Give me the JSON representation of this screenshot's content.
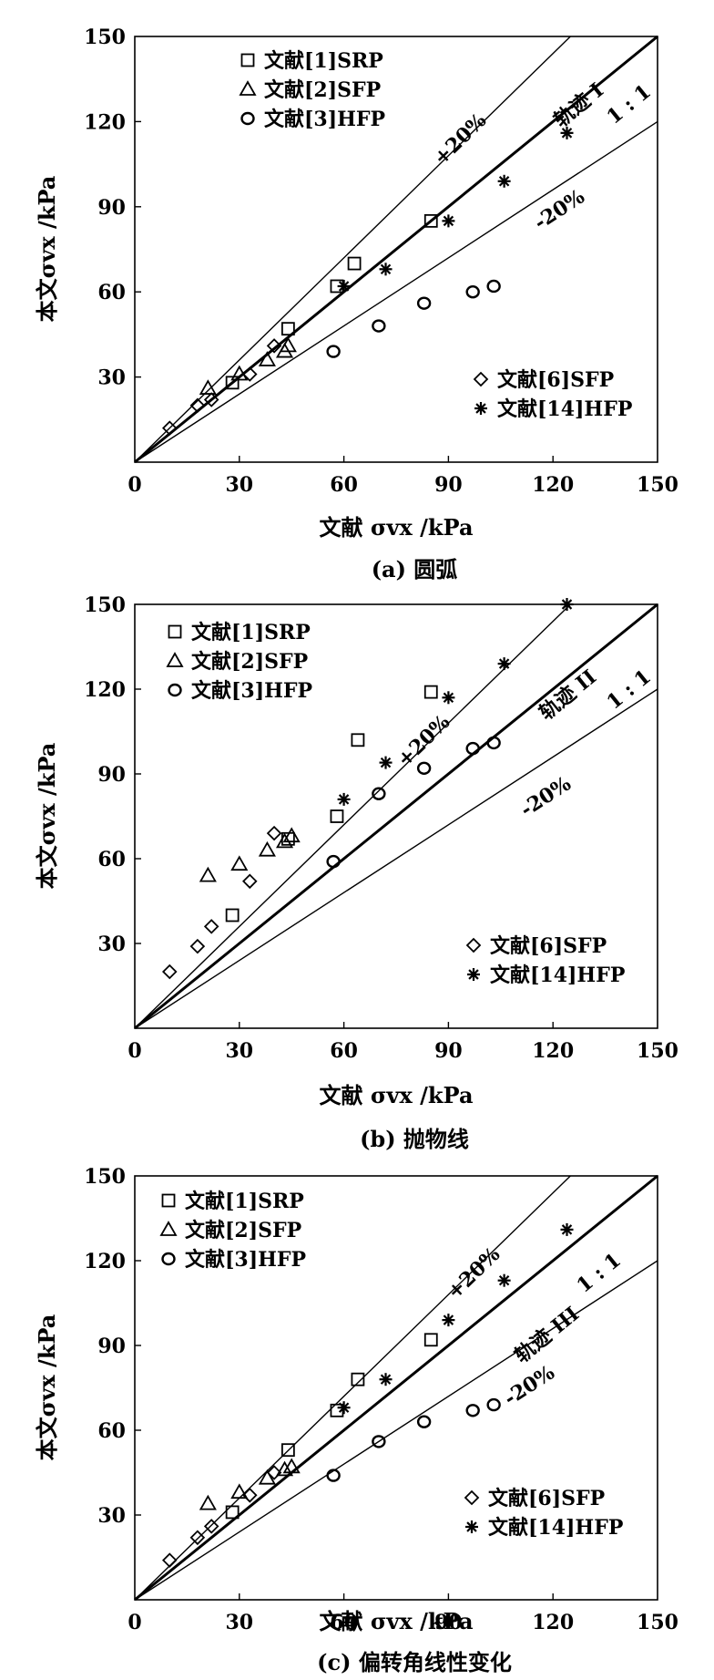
{
  "chart_data": [
    {
      "type": "scatter",
      "caption": "(a) 圆弧",
      "xlabel": "文献 σvx /kPa",
      "ylabel": "本文σvx /kPa",
      "xlim": [
        0,
        150
      ],
      "ylim": [
        0,
        150
      ],
      "xticks": [
        "0",
        "30",
        "60",
        "90",
        "120",
        "150"
      ],
      "yticks": [
        "30",
        "60",
        "90",
        "120",
        "150"
      ],
      "lines": [
        {
          "label": "+20%",
          "slope": 1.2
        },
        {
          "label": "1 : 1",
          "slope": 1.0
        },
        {
          "label": "-20%",
          "slope": 0.8
        }
      ],
      "curve_label": "轨迹 I",
      "series": [
        {
          "name": "文献[1]SRP",
          "marker": "square",
          "points": [
            [
              28,
              28
            ],
            [
              44,
              47
            ],
            [
              58,
              62
            ],
            [
              63,
              70
            ],
            [
              85,
              85
            ]
          ]
        },
        {
          "name": "文献[2]SFP",
          "marker": "triangle",
          "points": [
            [
              21,
              26
            ],
            [
              30,
              31
            ],
            [
              38,
              36
            ],
            [
              43,
              39
            ],
            [
              44,
              41
            ]
          ]
        },
        {
          "name": "文献[3]HFP",
          "marker": "circle",
          "points": [
            [
              57,
              39
            ],
            [
              70,
              48
            ],
            [
              83,
              56
            ],
            [
              97,
              60
            ],
            [
              103,
              62
            ]
          ]
        },
        {
          "name": "文献[6]SFP",
          "marker": "diamond",
          "points": [
            [
              10,
              12
            ],
            [
              18,
              20
            ],
            [
              22,
              22
            ],
            [
              33,
              31
            ],
            [
              40,
              41
            ]
          ]
        },
        {
          "name": "文献[14]HFP",
          "marker": "star",
          "points": [
            [
              60,
              62
            ],
            [
              72,
              68
            ],
            [
              90,
              85
            ],
            [
              106,
              99
            ],
            [
              124,
              116
            ]
          ]
        }
      ]
    },
    {
      "type": "scatter",
      "caption": "(b) 抛物线",
      "xlabel": "文献 σvx /kPa",
      "ylabel": "本文σvx /kPa",
      "xlim": [
        0,
        150
      ],
      "ylim": [
        0,
        150
      ],
      "xticks": [
        "0",
        "30",
        "60",
        "90",
        "120",
        "150"
      ],
      "yticks": [
        "30",
        "60",
        "90",
        "120",
        "150"
      ],
      "lines": [
        {
          "label": "+20%",
          "slope": 1.2
        },
        {
          "label": "1 : 1",
          "slope": 1.0
        },
        {
          "label": "-20%",
          "slope": 0.8
        }
      ],
      "curve_label": "轨迹 II",
      "series": [
        {
          "name": "文献[1]SRP",
          "marker": "square",
          "points": [
            [
              28,
              40
            ],
            [
              44,
              67
            ],
            [
              58,
              75
            ],
            [
              64,
              102
            ],
            [
              85,
              119
            ]
          ]
        },
        {
          "name": "文献[2]SFP",
          "marker": "triangle",
          "points": [
            [
              21,
              54
            ],
            [
              30,
              58
            ],
            [
              38,
              63
            ],
            [
              43,
              66
            ],
            [
              45,
              68
            ]
          ]
        },
        {
          "name": "文献[3]HFP",
          "marker": "circle",
          "points": [
            [
              57,
              59
            ],
            [
              70,
              83
            ],
            [
              83,
              92
            ],
            [
              97,
              99
            ],
            [
              103,
              101
            ]
          ]
        },
        {
          "name": "文献[6]SFP",
          "marker": "diamond",
          "points": [
            [
              10,
              20
            ],
            [
              18,
              29
            ],
            [
              22,
              36
            ],
            [
              33,
              52
            ],
            [
              40,
              69
            ]
          ]
        },
        {
          "name": "文献[14]HFP",
          "marker": "star",
          "points": [
            [
              60,
              81
            ],
            [
              72,
              94
            ],
            [
              90,
              117
            ],
            [
              106,
              129
            ],
            [
              124,
              150
            ]
          ]
        }
      ]
    },
    {
      "type": "scatter",
      "caption": "(c) 偏转角线性变化",
      "xlabel": "文献 σvx /kPa",
      "ylabel": "本文σvx /kPa",
      "xlim": [
        0,
        150
      ],
      "ylim": [
        0,
        150
      ],
      "xticks": [
        "0",
        "30",
        "60",
        "90",
        "120",
        "150"
      ],
      "yticks": [
        "30",
        "60",
        "90",
        "120",
        "150"
      ],
      "lines": [
        {
          "label": "+20%",
          "slope": 1.2
        },
        {
          "label": "1 : 1",
          "slope": 1.0
        },
        {
          "label": "-20%",
          "slope": 0.8
        }
      ],
      "curve_label": "轨迹 III",
      "series": [
        {
          "name": "文献[1]SRP",
          "marker": "square",
          "points": [
            [
              28,
              31
            ],
            [
              44,
              53
            ],
            [
              58,
              67
            ],
            [
              64,
              78
            ],
            [
              85,
              92
            ]
          ]
        },
        {
          "name": "文献[2]SFP",
          "marker": "triangle",
          "points": [
            [
              21,
              34
            ],
            [
              30,
              38
            ],
            [
              38,
              43
            ],
            [
              43,
              46
            ],
            [
              45,
              47
            ]
          ]
        },
        {
          "name": "文献[3]HFP",
          "marker": "circle",
          "points": [
            [
              57,
              44
            ],
            [
              70,
              56
            ],
            [
              83,
              63
            ],
            [
              97,
              67
            ],
            [
              103,
              69
            ]
          ]
        },
        {
          "name": "文献[6]SFP",
          "marker": "diamond",
          "points": [
            [
              10,
              14
            ],
            [
              18,
              22
            ],
            [
              22,
              26
            ],
            [
              33,
              37
            ],
            [
              40,
              45
            ]
          ]
        },
        {
          "name": "文献[14]HFP",
          "marker": "star",
          "points": [
            [
              60,
              68
            ],
            [
              72,
              78
            ],
            [
              90,
              99
            ],
            [
              106,
              113
            ],
            [
              124,
              131
            ]
          ]
        }
      ]
    }
  ]
}
